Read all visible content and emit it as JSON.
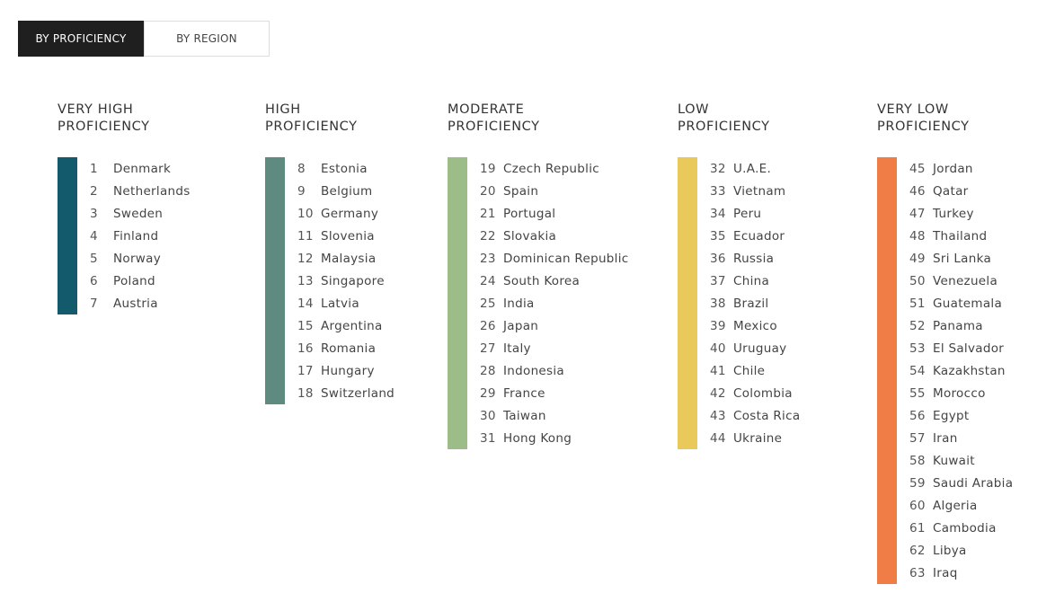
{
  "tabs": [
    {
      "label": "BY PROFICIENCY",
      "active": true
    },
    {
      "label": "BY REGION",
      "active": false
    }
  ],
  "groups": [
    {
      "title_line1": "VERY HIGH",
      "title_line2": "PROFICIENCY",
      "color": "#135a6c",
      "items": [
        {
          "rank": "1",
          "country": "Denmark"
        },
        {
          "rank": "2",
          "country": "Netherlands"
        },
        {
          "rank": "3",
          "country": "Sweden"
        },
        {
          "rank": "4",
          "country": "Finland"
        },
        {
          "rank": "5",
          "country": "Norway"
        },
        {
          "rank": "6",
          "country": "Poland"
        },
        {
          "rank": "7",
          "country": "Austria"
        }
      ]
    },
    {
      "title_line1": "HIGH",
      "title_line2": "PROFICIENCY",
      "color": "#5e8a80",
      "items": [
        {
          "rank": "8",
          "country": "Estonia"
        },
        {
          "rank": "9",
          "country": "Belgium"
        },
        {
          "rank": "10",
          "country": "Germany"
        },
        {
          "rank": "11",
          "country": "Slovenia"
        },
        {
          "rank": "12",
          "country": "Malaysia"
        },
        {
          "rank": "13",
          "country": "Singapore"
        },
        {
          "rank": "14",
          "country": "Latvia"
        },
        {
          "rank": "15",
          "country": "Argentina"
        },
        {
          "rank": "16",
          "country": "Romania"
        },
        {
          "rank": "17",
          "country": "Hungary"
        },
        {
          "rank": "18",
          "country": "Switzerland"
        }
      ]
    },
    {
      "title_line1": "MODERATE",
      "title_line2": "PROFICIENCY",
      "color": "#9dbd88",
      "items": [
        {
          "rank": "19",
          "country": "Czech Republic"
        },
        {
          "rank": "20",
          "country": "Spain"
        },
        {
          "rank": "21",
          "country": "Portugal"
        },
        {
          "rank": "22",
          "country": "Slovakia"
        },
        {
          "rank": "23",
          "country": "Dominican Republic"
        },
        {
          "rank": "24",
          "country": "South Korea"
        },
        {
          "rank": "25",
          "country": "India"
        },
        {
          "rank": "26",
          "country": "Japan"
        },
        {
          "rank": "27",
          "country": "Italy"
        },
        {
          "rank": "28",
          "country": "Indonesia"
        },
        {
          "rank": "29",
          "country": "France"
        },
        {
          "rank": "30",
          "country": "Taiwan"
        },
        {
          "rank": "31",
          "country": "Hong Kong"
        }
      ]
    },
    {
      "title_line1": "LOW",
      "title_line2": "PROFICIENCY",
      "color": "#e8c95a",
      "items": [
        {
          "rank": "32",
          "country": "U.A.E."
        },
        {
          "rank": "33",
          "country": "Vietnam"
        },
        {
          "rank": "34",
          "country": "Peru"
        },
        {
          "rank": "35",
          "country": "Ecuador"
        },
        {
          "rank": "36",
          "country": "Russia"
        },
        {
          "rank": "37",
          "country": "China"
        },
        {
          "rank": "38",
          "country": "Brazil"
        },
        {
          "rank": "39",
          "country": "Mexico"
        },
        {
          "rank": "40",
          "country": "Uruguay"
        },
        {
          "rank": "41",
          "country": "Chile"
        },
        {
          "rank": "42",
          "country": "Colombia"
        },
        {
          "rank": "43",
          "country": "Costa Rica"
        },
        {
          "rank": "44",
          "country": "Ukraine"
        }
      ]
    },
    {
      "title_line1": "VERY LOW",
      "title_line2": "PROFICIENCY",
      "color": "#f07c46",
      "items": [
        {
          "rank": "45",
          "country": "Jordan"
        },
        {
          "rank": "46",
          "country": "Qatar"
        },
        {
          "rank": "47",
          "country": "Turkey"
        },
        {
          "rank": "48",
          "country": "Thailand"
        },
        {
          "rank": "49",
          "country": "Sri Lanka"
        },
        {
          "rank": "50",
          "country": "Venezuela"
        },
        {
          "rank": "51",
          "country": "Guatemala"
        },
        {
          "rank": "52",
          "country": "Panama"
        },
        {
          "rank": "53",
          "country": "El Salvador"
        },
        {
          "rank": "54",
          "country": "Kazakhstan"
        },
        {
          "rank": "55",
          "country": "Morocco"
        },
        {
          "rank": "56",
          "country": "Egypt"
        },
        {
          "rank": "57",
          "country": "Iran"
        },
        {
          "rank": "58",
          "country": "Kuwait"
        },
        {
          "rank": "59",
          "country": "Saudi Arabia"
        },
        {
          "rank": "60",
          "country": "Algeria"
        },
        {
          "rank": "61",
          "country": "Cambodia"
        },
        {
          "rank": "62",
          "country": "Libya"
        },
        {
          "rank": "63",
          "country": "Iraq"
        }
      ]
    }
  ]
}
